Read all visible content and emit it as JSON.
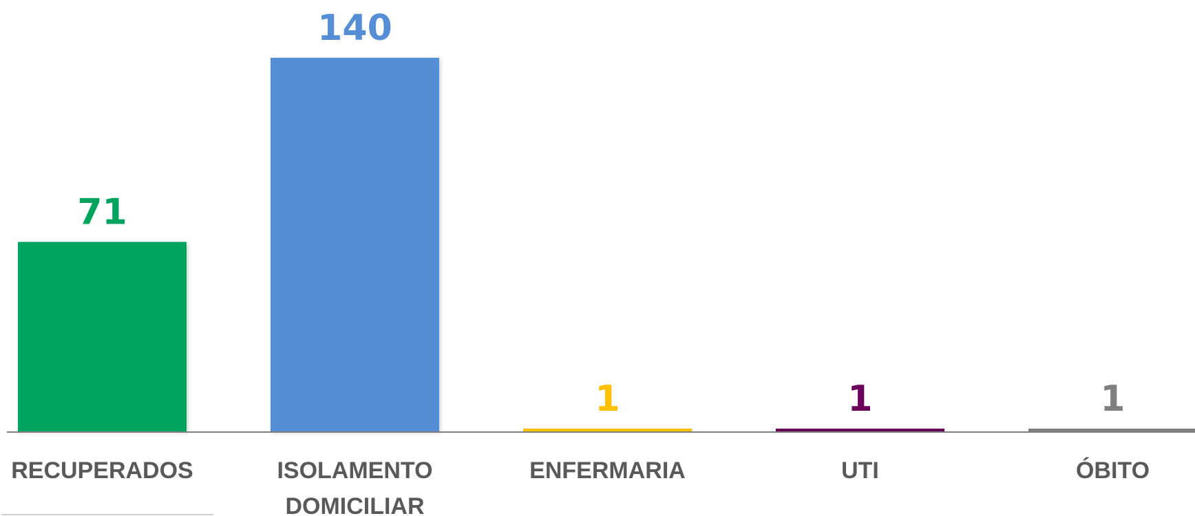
{
  "chart_data": {
    "type": "bar",
    "categories": [
      [
        "RECUPERADOS"
      ],
      [
        "ISOLAMENTO",
        "DOMICILIAR"
      ],
      [
        "ENFERMARIA"
      ],
      [
        "UTI"
      ],
      [
        "ÓBITO"
      ]
    ],
    "values": [
      71,
      140,
      1,
      1,
      1
    ],
    "data_labels": [
      "71",
      "140",
      "1",
      "1",
      "1"
    ],
    "colors": [
      "#00A35E",
      "#558ED5",
      "#FFC000",
      "#6B005A",
      "#808080"
    ],
    "axis_color": "#808080",
    "title": "",
    "xlabel": "",
    "ylabel": "",
    "ylim": [
      0,
      140
    ],
    "grid": false,
    "legend": "none"
  }
}
